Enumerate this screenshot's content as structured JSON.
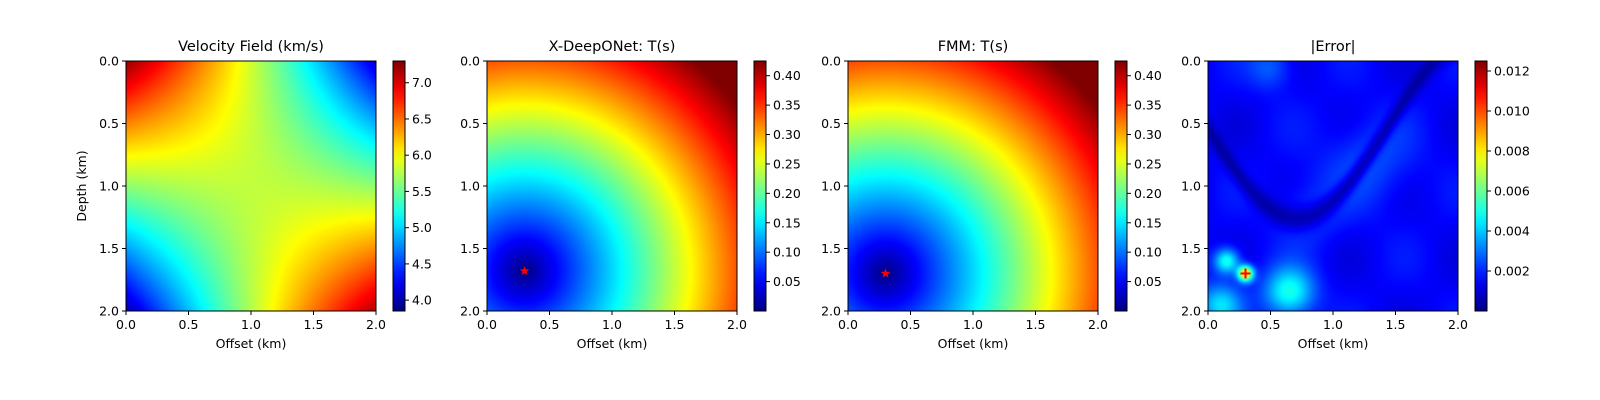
{
  "chart_data": [
    {
      "type": "heatmap",
      "title": "Velocity Field (km/s)",
      "xlabel": "Offset (km)",
      "ylabel": "Depth (km)",
      "xlim": [
        0,
        2
      ],
      "ylim": [
        2,
        0
      ],
      "xticks": [
        "0.0",
        "0.5",
        "1.0",
        "1.5",
        "2.0"
      ],
      "yticks": [
        "0.0",
        "0.5",
        "1.0",
        "1.5",
        "2.0"
      ],
      "colormap": "jet",
      "colorbar": {
        "range": [
          3.85,
          7.3
        ],
        "ticks": [
          "4.0",
          "4.5",
          "5.0",
          "5.5",
          "6.0",
          "6.5",
          "7.0"
        ]
      },
      "field": "velocity"
    },
    {
      "type": "heatmap",
      "title": "X-DeepONet: T(s)",
      "xlabel": "Offset (km)",
      "ylabel": "",
      "xlim": [
        0,
        2
      ],
      "ylim": [
        2,
        0
      ],
      "xticks": [
        "0.0",
        "0.5",
        "1.0",
        "1.5",
        "2.0"
      ],
      "yticks": [
        "0.0",
        "0.5",
        "1.0",
        "1.5",
        "2.0"
      ],
      "colormap": "jet",
      "colorbar": {
        "range": [
          0,
          0.425
        ],
        "ticks": [
          "0.05",
          "0.10",
          "0.15",
          "0.20",
          "0.25",
          "0.30",
          "0.35",
          "0.40"
        ]
      },
      "field": "traveltime",
      "source": {
        "x": 0.3,
        "y": 1.68,
        "marker": "star",
        "color": "#ff0000"
      }
    },
    {
      "type": "heatmap",
      "title": "FMM: T(s)",
      "xlabel": "Offset (km)",
      "ylabel": "",
      "xlim": [
        0,
        2
      ],
      "ylim": [
        2,
        0
      ],
      "xticks": [
        "0.0",
        "0.5",
        "1.0",
        "1.5",
        "2.0"
      ],
      "yticks": [
        "0.0",
        "0.5",
        "1.0",
        "1.5",
        "2.0"
      ],
      "colormap": "jet",
      "colorbar": {
        "range": [
          0,
          0.425
        ],
        "ticks": [
          "0.05",
          "0.10",
          "0.15",
          "0.20",
          "0.25",
          "0.30",
          "0.35",
          "0.40"
        ]
      },
      "field": "traveltime",
      "source": {
        "x": 0.3,
        "y": 1.7,
        "marker": "star",
        "color": "#ff0000"
      }
    },
    {
      "type": "heatmap",
      "title": "|Error|",
      "xlabel": "Offset (km)",
      "ylabel": "",
      "xlim": [
        0,
        2
      ],
      "ylim": [
        2,
        0
      ],
      "xticks": [
        "0.0",
        "0.5",
        "1.0",
        "1.5",
        "2.0"
      ],
      "yticks": [
        "0.0",
        "0.5",
        "1.0",
        "1.5",
        "2.0"
      ],
      "colormap": "jet",
      "colorbar": {
        "range": [
          0,
          0.0125
        ],
        "ticks": [
          "0.002",
          "0.004",
          "0.006",
          "0.008",
          "0.010",
          "0.012"
        ]
      },
      "field": "error",
      "source": {
        "x": 0.3,
        "y": 1.7,
        "marker": "plus",
        "color": "#ff0000"
      }
    }
  ]
}
